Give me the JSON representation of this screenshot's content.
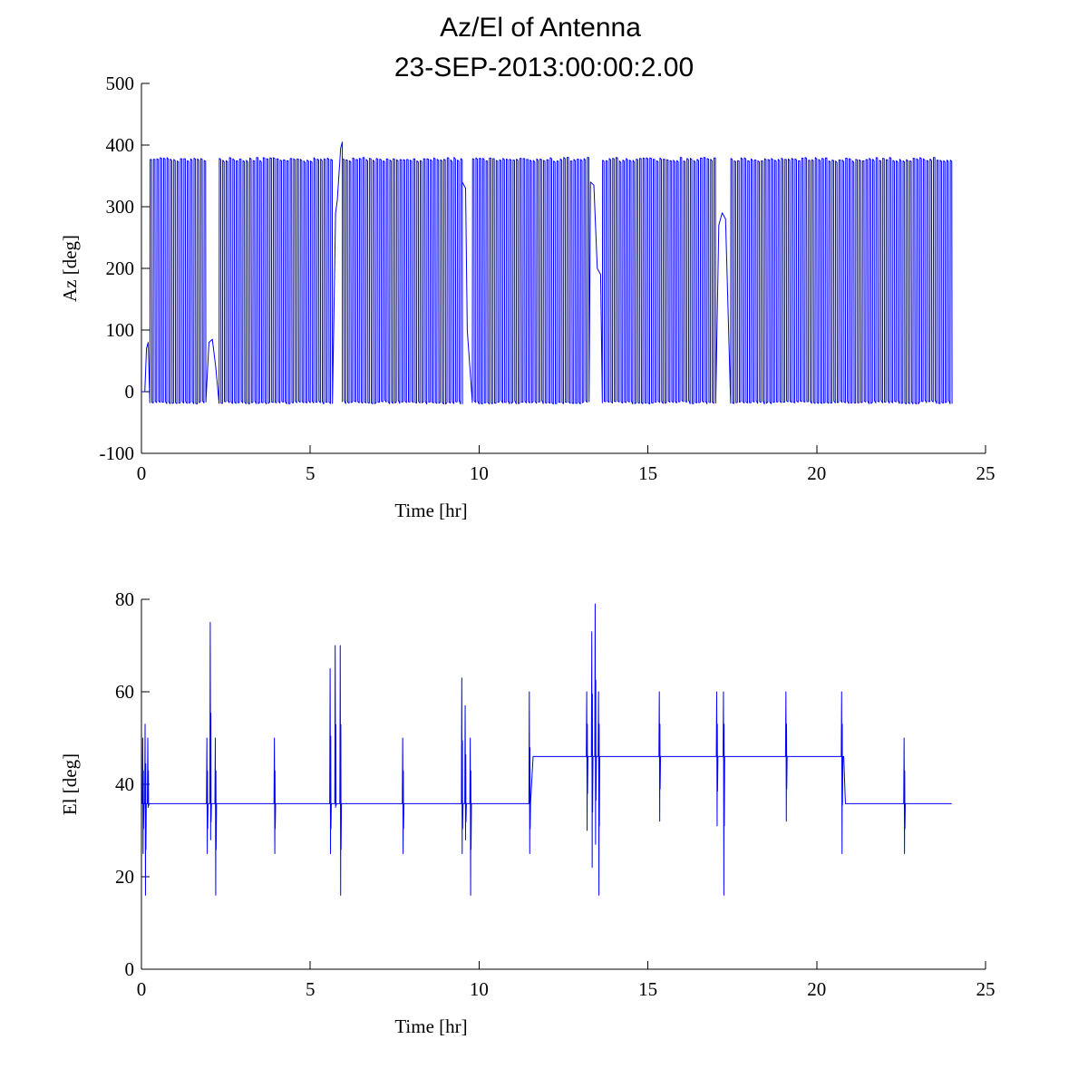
{
  "title_lines": [
    "Az/El of Antenna",
    "23-SEP-2013:00:00:2.00"
  ],
  "colors": {
    "series": "#0000ff",
    "axis": "#000000",
    "background": "#ffffff"
  },
  "chart_data": [
    {
      "type": "line",
      "name": "azimuth",
      "xlabel": "Time [hr]",
      "ylabel": "Az [deg]",
      "xlim": [
        0,
        25
      ],
      "ylim": [
        -100,
        500
      ],
      "xticks": [
        0,
        5,
        10,
        15,
        20,
        25
      ],
      "yticks": [
        -100,
        0,
        100,
        200,
        300,
        400,
        500
      ],
      "grid": false,
      "series": [
        {
          "name": "Az",
          "pattern": "rapid oscillation between about -20 and 380 deg with brief steady segments",
          "oscillation_min": -20,
          "oscillation_max": 380,
          "oscillation_period_hr": 0.1,
          "active_segments": [
            [
              0.25,
              1.95
            ],
            [
              2.3,
              5.6
            ],
            [
              5.95,
              9.45
            ],
            [
              9.8,
              13.2
            ],
            [
              13.65,
              17.0
            ],
            [
              17.45,
              24.0
            ]
          ],
          "steady_points": [
            {
              "x": 0.0,
              "y": 0
            },
            {
              "x": 0.1,
              "y": 0
            },
            {
              "x": 0.15,
              "y": 70
            },
            {
              "x": 0.2,
              "y": 80
            },
            {
              "x": 2.0,
              "y": 80
            },
            {
              "x": 2.1,
              "y": 85
            },
            {
              "x": 2.2,
              "y": 40
            },
            {
              "x": 5.75,
              "y": 290
            },
            {
              "x": 5.8,
              "y": 310
            },
            {
              "x": 5.9,
              "y": 395
            },
            {
              "x": 5.95,
              "y": 405
            },
            {
              "x": 9.5,
              "y": 340
            },
            {
              "x": 9.6,
              "y": 330
            },
            {
              "x": 9.65,
              "y": 100
            },
            {
              "x": 13.3,
              "y": 340
            },
            {
              "x": 13.4,
              "y": 335
            },
            {
              "x": 13.5,
              "y": 200
            },
            {
              "x": 13.6,
              "y": 190
            },
            {
              "x": 17.1,
              "y": 270
            },
            {
              "x": 17.2,
              "y": 290
            },
            {
              "x": 17.3,
              "y": 280
            },
            {
              "x": 24.0,
              "y": 350
            }
          ]
        }
      ]
    },
    {
      "type": "line",
      "name": "elevation",
      "xlabel": "Time [hr]",
      "ylabel": "El [deg]",
      "xlim": [
        0,
        25
      ],
      "ylim": [
        0,
        80
      ],
      "xticks": [
        0,
        5,
        10,
        15,
        20,
        25
      ],
      "yticks": [
        0,
        20,
        40,
        60,
        80
      ],
      "grid": false,
      "series": [
        {
          "name": "El",
          "baseline_segments": [
            {
              "x0": 0.0,
              "x1": 11.5,
              "y": 35.8
            },
            {
              "x0": 11.6,
              "x1": 20.8,
              "y": 46
            },
            {
              "x0": 20.85,
              "x1": 24.0,
              "y": 35.8
            }
          ],
          "spikes": [
            {
              "x": 0.05,
              "high": 50,
              "low": 25
            },
            {
              "x": 0.12,
              "high": 53,
              "low": 16
            },
            {
              "x": 0.2,
              "high": 50,
              "low": 35
            },
            {
              "x": 1.95,
              "high": 50,
              "low": 25
            },
            {
              "x": 2.05,
              "high": 75,
              "low": 28
            },
            {
              "x": 2.2,
              "high": 50,
              "low": 16
            },
            {
              "x": 3.95,
              "high": 50,
              "low": 25
            },
            {
              "x": 5.6,
              "high": 65,
              "low": 25
            },
            {
              "x": 5.75,
              "high": 70,
              "low": 35
            },
            {
              "x": 5.9,
              "high": 70,
              "low": 16
            },
            {
              "x": 7.75,
              "high": 50,
              "low": 25
            },
            {
              "x": 9.5,
              "high": 63,
              "low": 25
            },
            {
              "x": 9.6,
              "high": 57,
              "low": 28
            },
            {
              "x": 9.75,
              "high": 50,
              "low": 16
            },
            {
              "x": 11.5,
              "high": 60,
              "low": 25
            },
            {
              "x": 13.2,
              "high": 60,
              "low": 30
            },
            {
              "x": 13.35,
              "high": 73,
              "low": 22
            },
            {
              "x": 13.45,
              "high": 79,
              "low": 27
            },
            {
              "x": 13.55,
              "high": 60,
              "low": 16
            },
            {
              "x": 15.35,
              "high": 60,
              "low": 32
            },
            {
              "x": 17.05,
              "high": 60,
              "low": 31
            },
            {
              "x": 17.25,
              "high": 60,
              "low": 16
            },
            {
              "x": 19.1,
              "high": 60,
              "low": 32
            },
            {
              "x": 20.75,
              "high": 60,
              "low": 25
            },
            {
              "x": 22.6,
              "high": 50,
              "low": 25
            }
          ],
          "end_x": 24.0
        }
      ]
    }
  ]
}
